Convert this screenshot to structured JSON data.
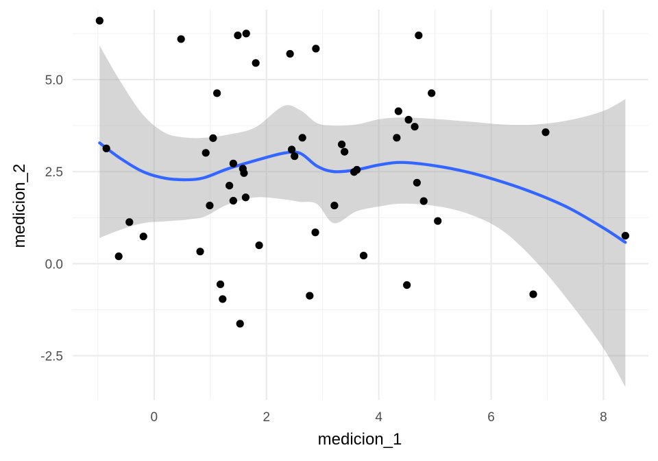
{
  "chart_data": {
    "type": "scatter",
    "title": "",
    "xlabel": "medicion_1",
    "ylabel": "medicion_2",
    "xlim": [
      -1.45,
      8.8
    ],
    "ylim": [
      -3.7,
      6.9
    ],
    "x_ticks": [
      0,
      2,
      4,
      6,
      8
    ],
    "x_tick_labels": [
      "0",
      "2",
      "4",
      "6",
      "8"
    ],
    "y_ticks": [
      -2.5,
      0,
      2.5,
      5
    ],
    "y_tick_labels": [
      "-2.5",
      "0.0",
      "2.5",
      "5.0"
    ],
    "grid": true,
    "legend": "none",
    "colors": {
      "points": "#000000",
      "smooth_line": "#3366ff",
      "ribbon": "#999999",
      "grid_major": "#ebebeb",
      "grid_minor": "#f2f2f2",
      "background": "#ffffff"
    },
    "points": [
      {
        "x": -0.97,
        "y": 6.6
      },
      {
        "x": -0.85,
        "y": 3.13
      },
      {
        "x": -0.63,
        "y": 0.2
      },
      {
        "x": -0.44,
        "y": 1.13
      },
      {
        "x": -0.19,
        "y": 0.74
      },
      {
        "x": 0.48,
        "y": 6.1
      },
      {
        "x": 0.82,
        "y": 0.33
      },
      {
        "x": 0.92,
        "y": 3.01
      },
      {
        "x": 0.99,
        "y": 1.58
      },
      {
        "x": 1.05,
        "y": 3.41
      },
      {
        "x": 1.12,
        "y": 4.63
      },
      {
        "x": 1.18,
        "y": -0.56
      },
      {
        "x": 1.22,
        "y": -0.96
      },
      {
        "x": 1.34,
        "y": 2.12
      },
      {
        "x": 1.41,
        "y": 2.72
      },
      {
        "x": 1.41,
        "y": 1.71
      },
      {
        "x": 1.49,
        "y": 6.2
      },
      {
        "x": 1.53,
        "y": -1.63
      },
      {
        "x": 1.58,
        "y": 2.58
      },
      {
        "x": 1.6,
        "y": 2.46
      },
      {
        "x": 1.63,
        "y": 1.8
      },
      {
        "x": 1.64,
        "y": 6.25
      },
      {
        "x": 1.81,
        "y": 5.45
      },
      {
        "x": 1.87,
        "y": 0.5
      },
      {
        "x": 2.42,
        "y": 5.7
      },
      {
        "x": 2.45,
        "y": 3.1
      },
      {
        "x": 2.5,
        "y": 2.92
      },
      {
        "x": 2.64,
        "y": 3.42
      },
      {
        "x": 2.77,
        "y": -0.87
      },
      {
        "x": 2.87,
        "y": 0.85
      },
      {
        "x": 2.88,
        "y": 5.84
      },
      {
        "x": 3.21,
        "y": 1.58
      },
      {
        "x": 3.34,
        "y": 3.24
      },
      {
        "x": 3.39,
        "y": 3.04
      },
      {
        "x": 3.56,
        "y": 2.49
      },
      {
        "x": 3.61,
        "y": 2.55
      },
      {
        "x": 3.73,
        "y": 0.22
      },
      {
        "x": 4.32,
        "y": 3.42
      },
      {
        "x": 4.35,
        "y": 4.14
      },
      {
        "x": 4.5,
        "y": -0.58
      },
      {
        "x": 4.53,
        "y": 3.91
      },
      {
        "x": 4.64,
        "y": 3.72
      },
      {
        "x": 4.68,
        "y": 2.2
      },
      {
        "x": 4.71,
        "y": 6.2
      },
      {
        "x": 4.8,
        "y": 1.7
      },
      {
        "x": 4.94,
        "y": 4.63
      },
      {
        "x": 5.05,
        "y": 1.16
      },
      {
        "x": 6.75,
        "y": -0.83
      },
      {
        "x": 6.97,
        "y": 3.57
      },
      {
        "x": 8.39,
        "y": 0.76
      }
    ],
    "smooth": {
      "x": [
        -0.97,
        -0.6,
        -0.2,
        0.2,
        0.6,
        0.9,
        1.3,
        1.8,
        2.3,
        2.6,
        2.9,
        3.2,
        3.6,
        4.0,
        4.4,
        5.0,
        5.6,
        6.2,
        6.8,
        7.4,
        8.0,
        8.39
      ],
      "y": [
        3.28,
        2.86,
        2.5,
        2.32,
        2.28,
        2.34,
        2.57,
        2.8,
        3.0,
        3.0,
        2.65,
        2.5,
        2.55,
        2.68,
        2.75,
        2.66,
        2.48,
        2.22,
        1.9,
        1.5,
        0.97,
        0.58
      ],
      "upper": [
        5.92,
        4.95,
        4.05,
        3.55,
        3.42,
        3.42,
        3.5,
        3.7,
        4.28,
        4.17,
        3.82,
        3.75,
        3.78,
        3.92,
        3.97,
        3.93,
        3.86,
        3.78,
        3.78,
        3.9,
        4.15,
        4.47
      ],
      "lower": [
        0.7,
        0.92,
        1.1,
        1.15,
        1.2,
        1.28,
        1.6,
        1.8,
        1.75,
        1.68,
        1.62,
        1.1,
        1.42,
        1.55,
        1.63,
        1.57,
        1.35,
        0.9,
        0.05,
        -1.05,
        -2.3,
        -3.35
      ]
    }
  }
}
